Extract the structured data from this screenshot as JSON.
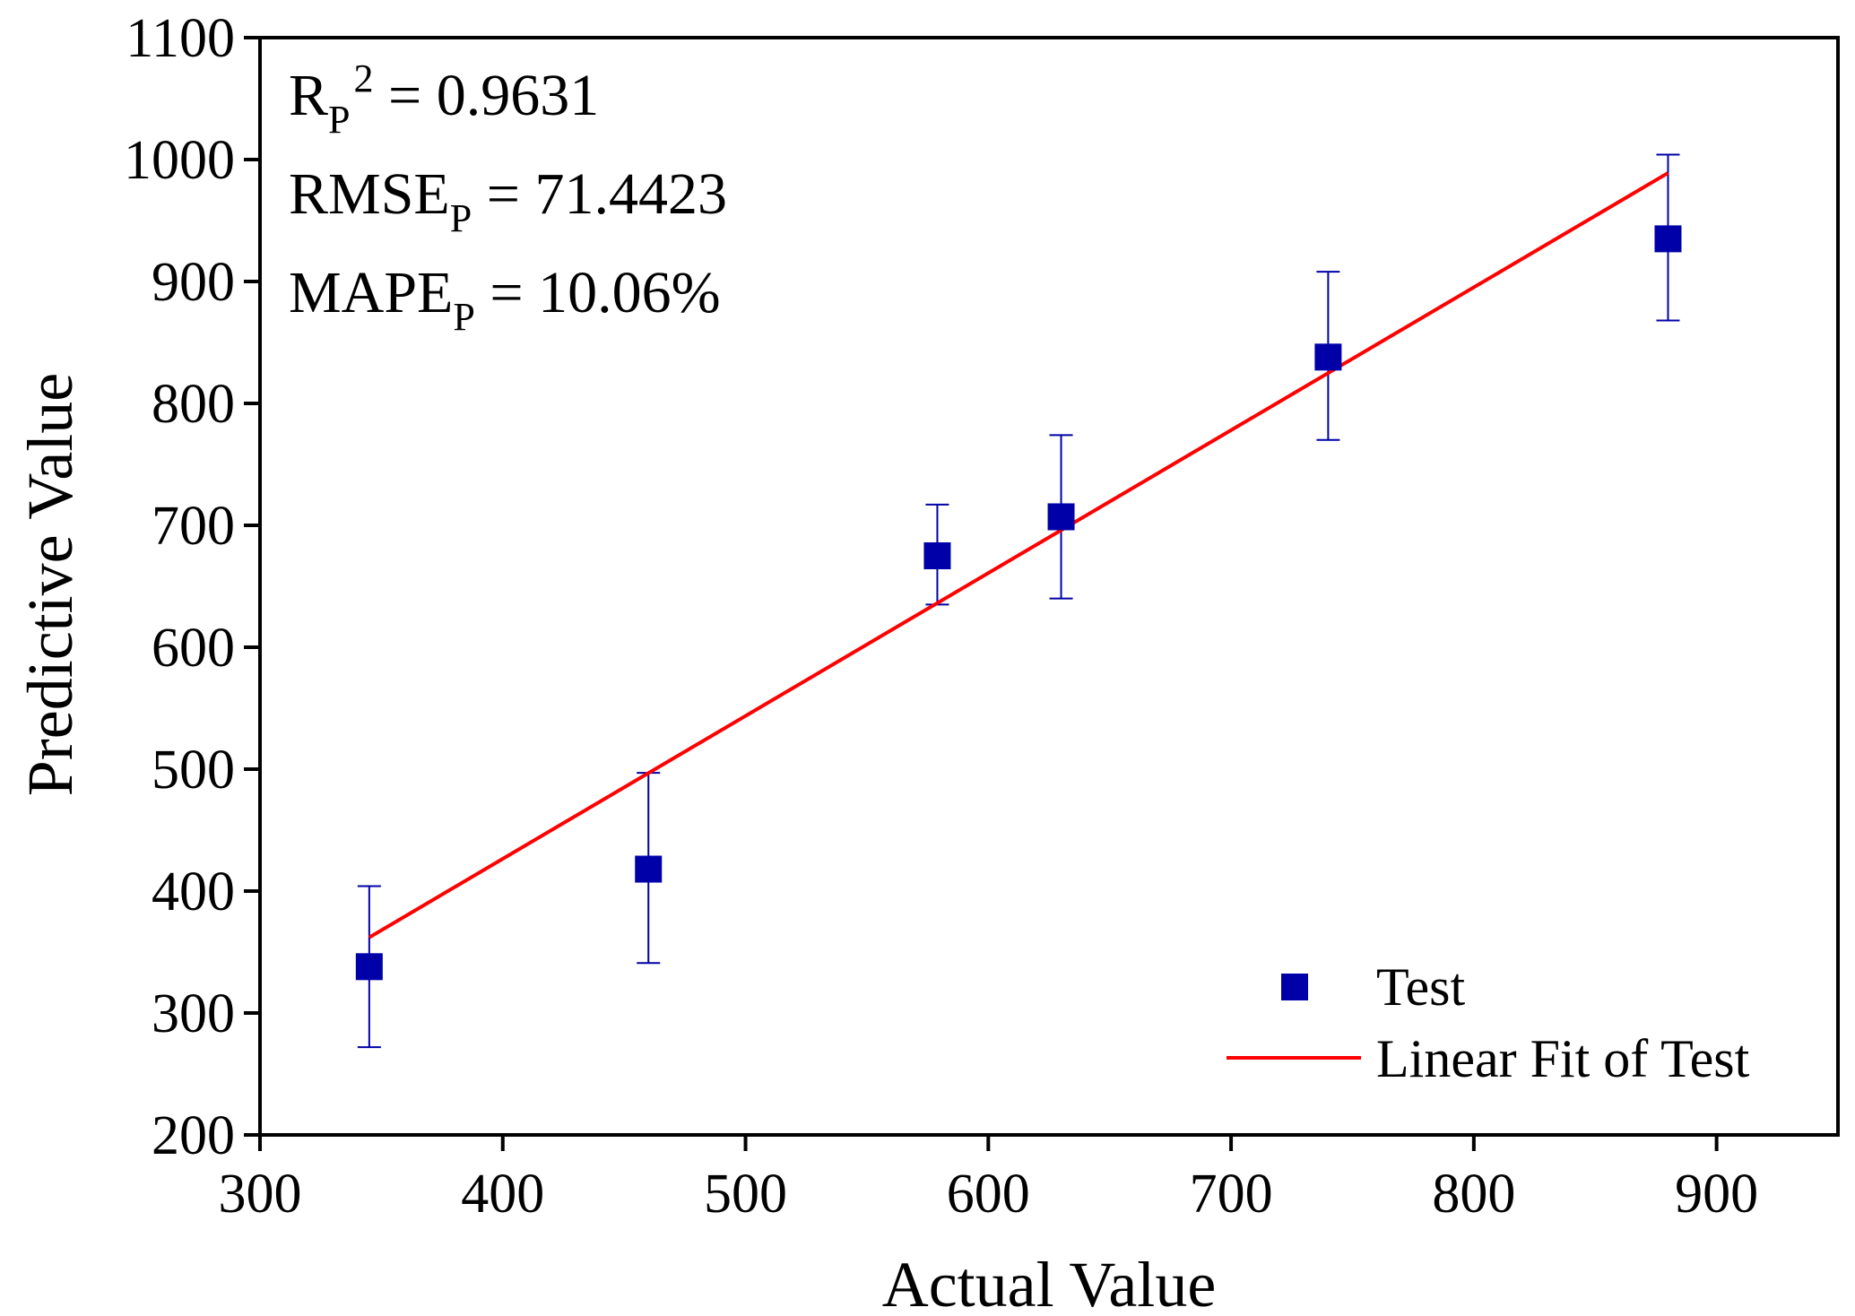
{
  "chart_data": {
    "type": "scatter",
    "xlabel": "Actual Value",
    "ylabel": "Predictive Value",
    "xlim": [
      300,
      950
    ],
    "ylim": [
      200,
      1100
    ],
    "xticks": [
      300,
      400,
      500,
      600,
      700,
      800,
      900
    ],
    "yticks": [
      200,
      300,
      400,
      500,
      600,
      700,
      800,
      900,
      1000,
      1100
    ],
    "grid": false,
    "legend_position": "bottom-right",
    "series": [
      {
        "name": "Test",
        "kind": "scatter-errorbar",
        "color": "#0000a8",
        "points": [
          {
            "x": 345,
            "y": 338,
            "err_low": 272,
            "err_high": 404
          },
          {
            "x": 460,
            "y": 418,
            "err_low": 341,
            "err_high": 497
          },
          {
            "x": 579,
            "y": 675,
            "err_low": 635,
            "err_high": 717
          },
          {
            "x": 630,
            "y": 707,
            "err_low": 640,
            "err_high": 774
          },
          {
            "x": 740,
            "y": 838,
            "err_low": 770,
            "err_high": 908
          },
          {
            "x": 880,
            "y": 935,
            "err_low": 868,
            "err_high": 1004
          }
        ]
      },
      {
        "name": "Linear Fit of Test",
        "kind": "line",
        "color": "#ff0000",
        "x": [
          345,
          880
        ],
        "y": [
          362,
          989
        ]
      }
    ],
    "stats": [
      {
        "main": "R",
        "sub": "P",
        "sup": "2",
        "rest": " = 0.9631"
      },
      {
        "main": "RMSE",
        "sub": "P",
        "sup": "",
        "rest": " = 71.4423"
      },
      {
        "main": "MAPE",
        "sub": "P",
        "sup": "",
        "rest": " = 10.06%"
      }
    ]
  }
}
